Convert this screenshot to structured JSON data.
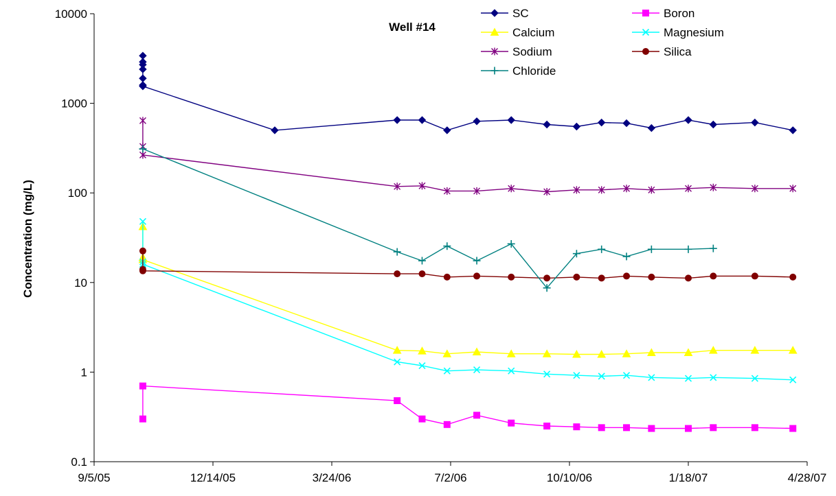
{
  "chart_data": {
    "type": "line",
    "title": "Well #14",
    "ylabel": "Concentration (mg/L)",
    "xlabel": "",
    "y_scale": "log",
    "ylim": [
      0.1,
      10000
    ],
    "y_ticks": [
      "0.1",
      "1",
      "10",
      "100",
      "1000",
      "10000"
    ],
    "xlim": [
      "2005-09-05",
      "2007-04-28"
    ],
    "x_ticks": [
      "9/5/05",
      "12/14/05",
      "3/24/06",
      "7/2/06",
      "10/10/06",
      "1/18/07",
      "4/28/07"
    ],
    "grid": false,
    "legend_position": "top-right",
    "series": [
      {
        "name": "SC",
        "color": "#000080",
        "marker": "diamond",
        "x": [
          "2005-10-16",
          "2005-10-16",
          "2005-10-16",
          "2005-10-16",
          "2005-10-16",
          "2005-10-16",
          "2005-10-16",
          "2006-02-04",
          "2006-05-18",
          "2006-06-08",
          "2006-06-29",
          "2006-07-24",
          "2006-08-22",
          "2006-09-21",
          "2006-10-16",
          "2006-11-06",
          "2006-11-27",
          "2006-12-18",
          "2007-01-18",
          "2007-02-08",
          "2007-03-15",
          "2007-04-16"
        ],
        "y": [
          3400,
          2900,
          2700,
          2400,
          1900,
          1600,
          1550,
          500,
          650,
          650,
          500,
          630,
          650,
          580,
          550,
          610,
          600,
          530,
          650,
          580,
          610,
          500
        ]
      },
      {
        "name": "Boron",
        "color": "#ff00ff",
        "marker": "square",
        "x": [
          "2005-10-16",
          "2005-10-16",
          "2006-05-18",
          "2006-06-08",
          "2006-06-29",
          "2006-07-24",
          "2006-08-22",
          "2006-09-21",
          "2006-10-16",
          "2006-11-06",
          "2006-11-27",
          "2006-12-18",
          "2007-01-18",
          "2007-02-08",
          "2007-03-15",
          "2007-04-16"
        ],
        "y": [
          0.3,
          0.7,
          0.48,
          0.3,
          0.26,
          0.33,
          0.27,
          0.25,
          0.245,
          0.24,
          0.24,
          0.235,
          0.235,
          0.24,
          0.24,
          0.235
        ]
      },
      {
        "name": "Calcium",
        "color": "#ffff00",
        "marker": "triangle",
        "x": [
          "2005-10-16",
          "2005-10-16",
          "2005-10-16",
          "2006-05-18",
          "2006-06-08",
          "2006-06-29",
          "2006-07-24",
          "2006-08-22",
          "2006-09-21",
          "2006-10-16",
          "2006-11-06",
          "2006-11-27",
          "2006-12-18",
          "2007-01-18",
          "2007-02-08",
          "2007-03-15",
          "2007-04-16"
        ],
        "y": [
          42,
          19,
          18,
          1.75,
          1.72,
          1.6,
          1.68,
          1.6,
          1.6,
          1.58,
          1.58,
          1.6,
          1.65,
          1.65,
          1.75,
          1.75,
          1.75
        ]
      },
      {
        "name": "Magnesium",
        "color": "#00ffff",
        "marker": "x",
        "x": [
          "2005-10-16",
          "2005-10-16",
          "2005-10-16",
          "2006-05-18",
          "2006-06-08",
          "2006-06-29",
          "2006-07-24",
          "2006-08-22",
          "2006-09-21",
          "2006-10-16",
          "2006-11-06",
          "2006-11-27",
          "2006-12-18",
          "2007-01-18",
          "2007-02-08",
          "2007-03-15",
          "2007-04-16"
        ],
        "y": [
          48,
          17,
          16,
          1.3,
          1.18,
          1.03,
          1.06,
          1.03,
          0.95,
          0.92,
          0.9,
          0.92,
          0.87,
          0.85,
          0.87,
          0.85,
          0.82
        ]
      },
      {
        "name": "Sodium",
        "color": "#800080",
        "marker": "star",
        "x": [
          "2005-10-16",
          "2005-10-16",
          "2005-10-16",
          "2006-05-18",
          "2006-06-08",
          "2006-06-29",
          "2006-07-24",
          "2006-08-22",
          "2006-09-21",
          "2006-10-16",
          "2006-11-06",
          "2006-11-27",
          "2006-12-18",
          "2007-01-18",
          "2007-02-08",
          "2007-03-15",
          "2007-04-16"
        ],
        "y": [
          640,
          330,
          265,
          118,
          120,
          105,
          105,
          112,
          103,
          108,
          108,
          112,
          108,
          112,
          115,
          112,
          112
        ]
      },
      {
        "name": "Silica",
        "color": "#800000",
        "marker": "circle",
        "x": [
          "2005-10-16",
          "2005-10-16",
          "2005-10-16",
          "2006-05-18",
          "2006-06-08",
          "2006-06-29",
          "2006-07-24",
          "2006-08-22",
          "2006-09-21",
          "2006-10-16",
          "2006-11-06",
          "2006-11-27",
          "2006-12-18",
          "2007-01-18",
          "2007-02-08",
          "2007-03-15",
          "2007-04-16"
        ],
        "y": [
          22.5,
          14,
          13.5,
          12.5,
          12.5,
          11.5,
          11.8,
          11.5,
          11.2,
          11.5,
          11.2,
          11.8,
          11.5,
          11.2,
          11.8,
          11.8,
          11.5
        ]
      },
      {
        "name": "Chloride",
        "color": "#008080",
        "marker": "plus",
        "x": [
          "2005-10-16",
          "2006-05-18",
          "2006-06-08",
          "2006-06-29",
          "2006-07-24",
          "2006-08-22",
          "2006-09-21",
          "2006-10-16",
          "2006-11-06",
          "2006-11-27",
          "2006-12-18",
          "2007-01-18",
          "2007-02-08"
        ],
        "y": [
          310,
          22,
          17.5,
          25.5,
          17.5,
          27,
          8.7,
          21,
          23.5,
          19.5,
          23.5,
          23.5,
          24
        ]
      }
    ]
  }
}
